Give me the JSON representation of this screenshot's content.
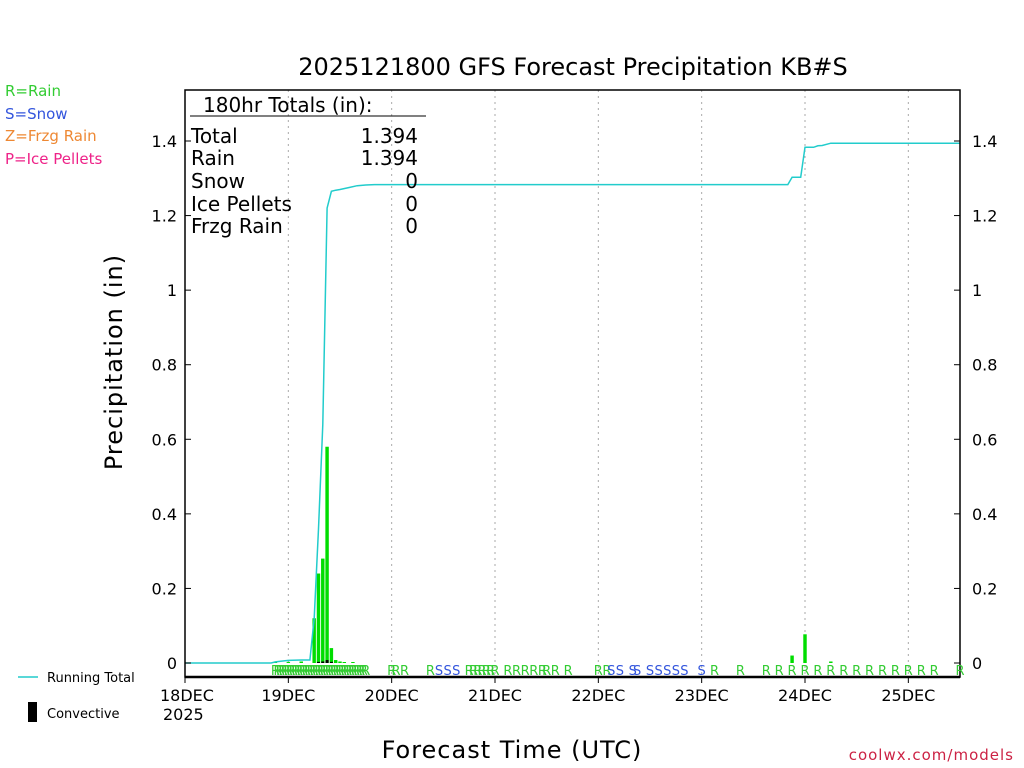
{
  "chart_data": {
    "type": "bar",
    "title": "2025121800 GFS Forecast Precipitation KB#S",
    "xlabel": "Forecast Time (UTC)",
    "ylabel": "Precipitation (in)",
    "ylim": [
      0,
      1.5
    ],
    "xlim_hours": [
      0,
      180
    ],
    "y_ticks": [
      0,
      0.2,
      0.4,
      0.6,
      0.8,
      1,
      1.2,
      1.4
    ],
    "y_tick_labels": [
      "0",
      "0.2",
      "0.4",
      "0.6",
      "0.8",
      "1",
      "1.2",
      "1.4"
    ],
    "x_ticks": [
      {
        "hour": 0,
        "label": "18DEC",
        "sublabel": "2025"
      },
      {
        "hour": 24,
        "label": "19DEC",
        "sublabel": ""
      },
      {
        "hour": 48,
        "label": "20DEC",
        "sublabel": ""
      },
      {
        "hour": 72,
        "label": "21DEC",
        "sublabel": ""
      },
      {
        "hour": 96,
        "label": "22DEC",
        "sublabel": ""
      },
      {
        "hour": 120,
        "label": "23DEC",
        "sublabel": ""
      },
      {
        "hour": 144,
        "label": "24DEC",
        "sublabel": ""
      },
      {
        "hour": 168,
        "label": "25DEC",
        "sublabel": ""
      }
    ],
    "grid": "vertical-dotted",
    "precip_type_legend": [
      {
        "text": "R=Rain",
        "color": "#33cc33"
      },
      {
        "text": "S=Snow",
        "color": "#3355dd"
      },
      {
        "text": "Z=Frzg Rain",
        "color": "#ee8833"
      },
      {
        "text": "P=Ice Pellets",
        "color": "#ee2288"
      }
    ],
    "series_legend": [
      {
        "name": "Running Total",
        "color": "#22cccc",
        "kind": "line"
      },
      {
        "name": "Convective",
        "color": "#000000",
        "kind": "bar"
      }
    ],
    "totals": {
      "heading": "180hr Totals (in):",
      "rows": [
        {
          "label": "Total",
          "value": "1.394"
        },
        {
          "label": "Rain",
          "value": "1.394"
        },
        {
          "label": "Snow",
          "value": "0"
        },
        {
          "label": "Ice Pellets",
          "value": "0"
        },
        {
          "label": "Frzg Rain",
          "value": "0"
        }
      ]
    },
    "precip_bars": {
      "color": "#00dd00",
      "hours": [
        21,
        24,
        27,
        30,
        31,
        32,
        33,
        34,
        35,
        36,
        37,
        39,
        141,
        144,
        150
      ],
      "values": [
        0.002,
        0.003,
        0.004,
        0.12,
        0.24,
        0.28,
        0.58,
        0.04,
        0.008,
        0.004,
        0.002,
        0.001,
        0.02,
        0.077,
        0.004
      ]
    },
    "convective_bars": {
      "color": "#000000",
      "hours": [
        31,
        32,
        33,
        34
      ],
      "values": [
        0.003,
        0.004,
        0.008,
        0.003
      ]
    },
    "running_total": {
      "color": "#22cccc",
      "hours": [
        0,
        20,
        21,
        24,
        27,
        29,
        30,
        31,
        32,
        33,
        34,
        35,
        36,
        38,
        40,
        42,
        44,
        140,
        141,
        143,
        144,
        146,
        147,
        148,
        150,
        180
      ],
      "values": [
        0,
        0,
        0.003,
        0.007,
        0.008,
        0.008,
        0.12,
        0.36,
        0.64,
        1.22,
        1.265,
        1.268,
        1.27,
        1.275,
        1.28,
        1.282,
        1.283,
        1.283,
        1.303,
        1.303,
        1.383,
        1.383,
        1.387,
        1.388,
        1.394,
        1.394
      ]
    },
    "type_markers": {
      "hours": [
        21,
        21.6,
        22.2,
        22.8,
        23.4,
        24,
        24.6,
        25.2,
        25.8,
        26.4,
        27,
        27.6,
        28.2,
        28.8,
        29.4,
        30,
        30.6,
        31.2,
        31.8,
        32.4,
        33,
        33.6,
        34.2,
        34.8,
        35.4,
        36,
        36.6,
        37.2,
        37.8,
        38.4,
        39,
        39.6,
        40.2,
        40.8,
        41.4,
        42,
        48,
        49,
        51,
        57,
        59,
        61,
        63,
        66,
        67,
        68,
        69,
        70,
        71,
        72,
        75,
        77,
        79,
        81,
        83,
        84,
        86,
        89,
        96,
        98,
        99,
        101,
        104,
        105,
        108,
        110,
        112,
        114,
        116,
        120,
        123,
        129,
        135,
        138,
        141,
        144,
        147,
        150,
        153,
        156,
        159,
        162,
        165,
        168,
        171,
        174,
        180
      ],
      "types": [
        "R",
        "R",
        "R",
        "R",
        "R",
        "R",
        "R",
        "R",
        "R",
        "R",
        "R",
        "R",
        "R",
        "R",
        "R",
        "R",
        "R",
        "R",
        "R",
        "R",
        "R",
        "R",
        "R",
        "R",
        "R",
        "R",
        "R",
        "R",
        "R",
        "R",
        "R",
        "R",
        "R",
        "R",
        "R",
        "R",
        "R",
        "R",
        "R",
        "R",
        "S",
        "S",
        "S",
        "R",
        "R",
        "R",
        "R",
        "R",
        "R",
        "R",
        "R",
        "R",
        "R",
        "R",
        "R",
        "R",
        "R",
        "R",
        "R",
        "R",
        "S",
        "S",
        "S",
        "S",
        "S",
        "S",
        "S",
        "S",
        "S",
        "S",
        "R",
        "R",
        "R",
        "R",
        "R",
        "R",
        "R",
        "R",
        "R",
        "R",
        "R",
        "R",
        "R",
        "R",
        "R",
        "R",
        "R"
      ]
    },
    "credit": "coolwx.com/models"
  }
}
